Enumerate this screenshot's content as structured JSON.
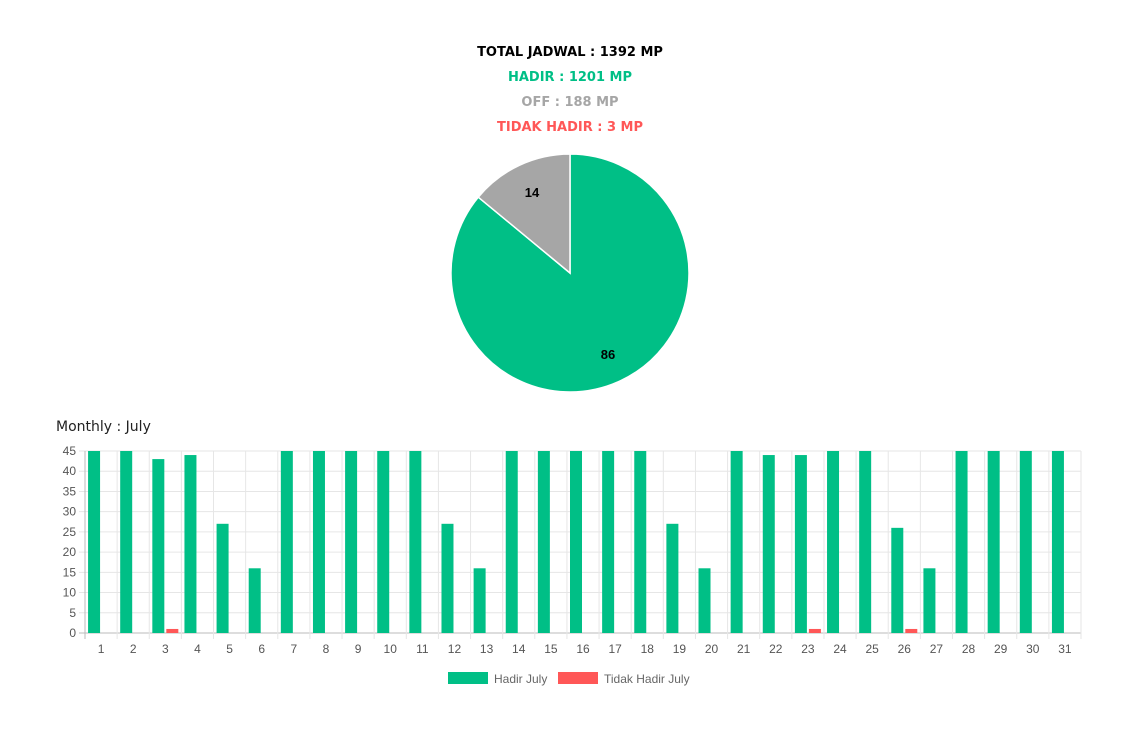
{
  "summary": {
    "total": "TOTAL JADWAL : 1392 MP",
    "hadir": "HADIR : 1201 MP",
    "off": "OFF : 188 MP",
    "tidak_hadir": "TIDAK HADIR : 3 MP"
  },
  "colors": {
    "total": "#000000",
    "hadir": "#00bf86",
    "off": "#a6a6a6",
    "tidak_hadir": "#ff5757"
  },
  "monthly_title": "Monthly : July",
  "chart_data": [
    {
      "type": "pie",
      "slices": [
        {
          "value": 86,
          "label": "86",
          "color": "#00bf86"
        },
        {
          "value": 14,
          "label": "14",
          "color": "#a6a6a6"
        }
      ]
    },
    {
      "type": "bar",
      "categories": [
        "1",
        "2",
        "3",
        "4",
        "5",
        "6",
        "7",
        "8",
        "9",
        "10",
        "11",
        "12",
        "13",
        "14",
        "15",
        "16",
        "17",
        "18",
        "19",
        "20",
        "21",
        "22",
        "23",
        "24",
        "25",
        "26",
        "27",
        "28",
        "29",
        "30",
        "31"
      ],
      "series": [
        {
          "name": "Hadir July",
          "color": "#00bf86",
          "values": [
            45,
            45,
            43,
            44,
            27,
            16,
            45,
            45,
            45,
            45,
            45,
            27,
            16,
            45,
            45,
            45,
            45,
            45,
            27,
            16,
            45,
            44,
            44,
            45,
            45,
            26,
            16,
            45,
            45,
            45,
            45
          ]
        },
        {
          "name": "Tidak Hadir July",
          "color": "#ff5757",
          "values": [
            0,
            0,
            1,
            0,
            0,
            0,
            0,
            0,
            0,
            0,
            0,
            0,
            0,
            0,
            0,
            0,
            0,
            0,
            0,
            0,
            0,
            0,
            1,
            0,
            0,
            1,
            0,
            0,
            0,
            0,
            0
          ]
        }
      ],
      "ylim": [
        0,
        45
      ],
      "yticks": [
        0,
        5,
        10,
        15,
        20,
        25,
        30,
        35,
        40,
        45
      ],
      "grid": true,
      "legend": "bottom"
    }
  ]
}
